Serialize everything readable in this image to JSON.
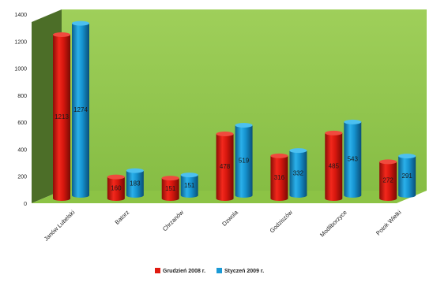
{
  "chart_data": {
    "type": "bar",
    "style": "3d-cylinder",
    "categories": [
      "Janów Lubelski",
      "Batorz",
      "Chrzanów",
      "Dzwola",
      "Godziszów",
      "Modliborzyce",
      "Potok Wielki"
    ],
    "series": [
      {
        "name": "Grudzień 2008 r.",
        "color": "#e01a10",
        "values": [
          1213,
          160,
          151,
          478,
          316,
          485,
          272
        ],
        "labels": [
          "1213",
          "160",
          "151",
          "478",
          "316",
          "485",
          "272"
        ]
      },
      {
        "name": "Styczeń 2009 r.",
        "color": "#1a9ad6",
        "values": [
          1274,
          183,
          151,
          519,
          332,
          543,
          291
        ],
        "labels": [
          "1274",
          "183",
          "151",
          "519",
          "332",
          "543",
          "291"
        ]
      }
    ],
    "ylim": [
      0,
      1400
    ],
    "yticks": [
      0,
      200,
      400,
      600,
      800,
      1000,
      1200,
      1400
    ],
    "grid": false,
    "legend_position": "bottom",
    "colors": {
      "back_wall": "#90c64a",
      "floor": "#8cc345",
      "side_wall": "#4c6e28"
    }
  }
}
